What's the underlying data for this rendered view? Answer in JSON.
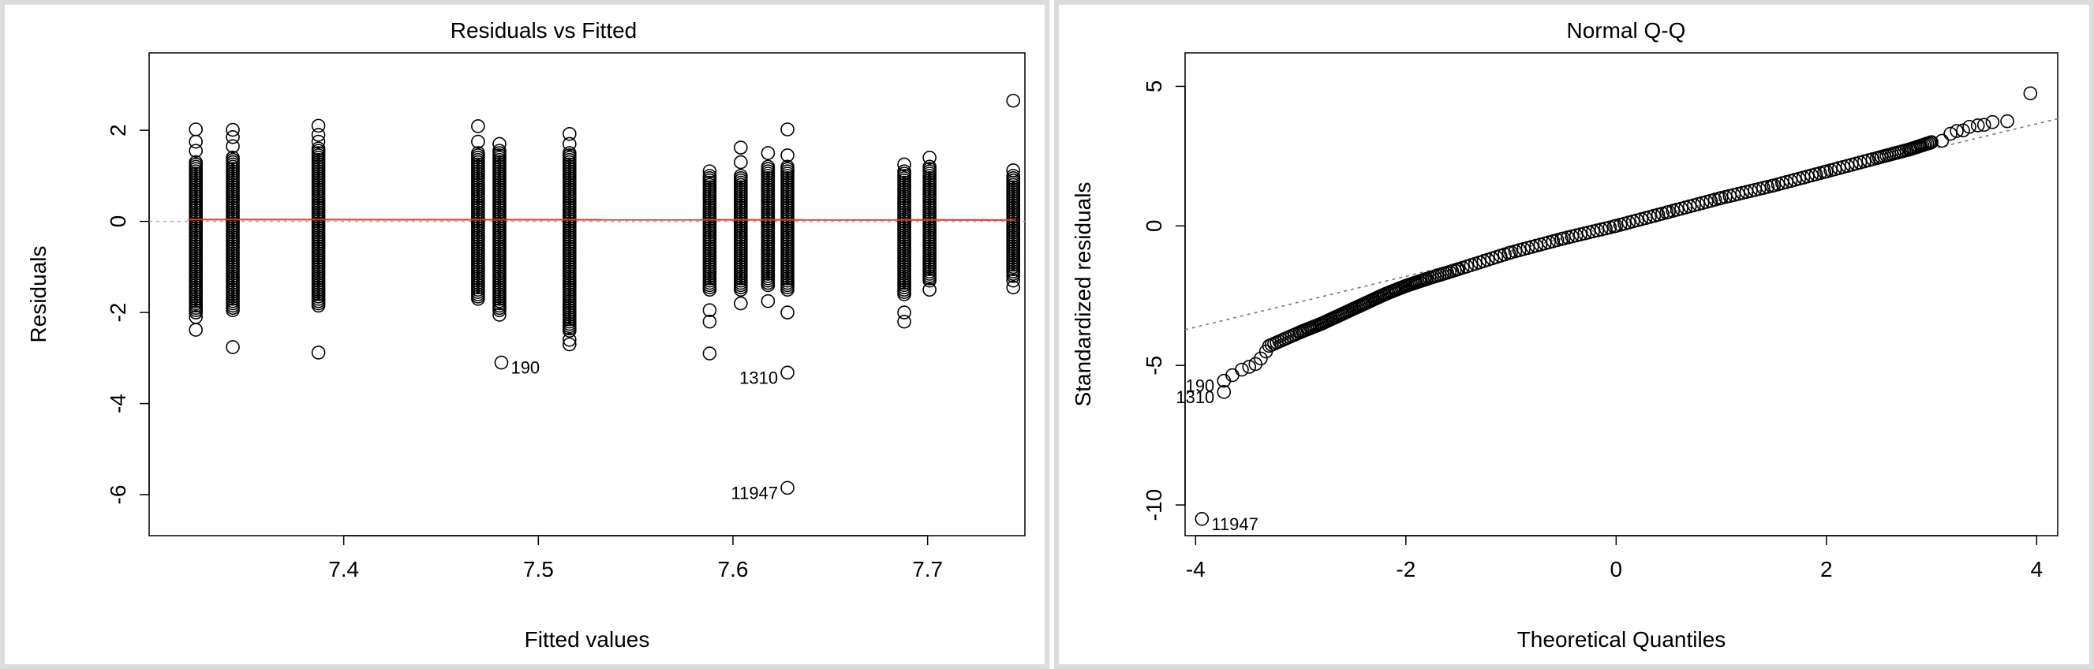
{
  "chart_data": [
    {
      "type": "scatter",
      "title": "Residuals vs Fitted",
      "xlabel": "Fitted values",
      "ylabel": "Residuals",
      "xlim": [
        7.3,
        7.75
      ],
      "ylim": [
        -6.9,
        3.7
      ],
      "xticks": [
        7.4,
        7.5,
        7.6,
        7.7
      ],
      "yticks": [
        -6,
        -4,
        -2,
        0,
        2
      ],
      "xtick_labels": [
        "7.4",
        "7.5",
        "7.6",
        "7.7"
      ],
      "ytick_labels": [
        "-6",
        "-4",
        "-2",
        "0",
        "2"
      ],
      "reference_line": {
        "y": 0,
        "style": "dotted",
        "color": "#aaaaaa"
      },
      "smooth_line": {
        "color": "#e0382e",
        "x": [
          7.32,
          7.745
        ],
        "y": [
          0.04,
          0.03
        ]
      },
      "columns": [
        {
          "x": 7.324,
          "min": -2.0,
          "max": 1.3,
          "extra": [
            2.02,
            1.75,
            1.55,
            -2.1,
            -2.38
          ]
        },
        {
          "x": 7.343,
          "min": -1.95,
          "max": 1.4,
          "extra": [
            2.01,
            1.85,
            1.65,
            -2.76
          ]
        },
        {
          "x": 7.387,
          "min": -1.85,
          "max": 1.6,
          "extra": [
            2.1,
            1.9,
            1.75,
            -2.88
          ]
        },
        {
          "x": 7.469,
          "min": -1.7,
          "max": 1.5,
          "extra": [
            2.09,
            1.75
          ]
        },
        {
          "x": 7.48,
          "min": -1.95,
          "max": 1.55,
          "extra": [
            1.7,
            -2.05
          ]
        },
        {
          "x": 7.516,
          "min": -2.4,
          "max": 1.5,
          "extra": [
            1.92,
            1.7,
            -2.6,
            -2.7
          ]
        },
        {
          "x": 7.588,
          "min": -1.5,
          "max": 1.0,
          "extra": [
            1.1,
            -1.95,
            -2.2,
            -2.9
          ]
        },
        {
          "x": 7.604,
          "min": -1.5,
          "max": 1.0,
          "extra": [
            1.62,
            1.3,
            -1.8
          ]
        },
        {
          "x": 7.618,
          "min": -1.4,
          "max": 1.2,
          "extra": [
            1.5,
            -1.75
          ]
        },
        {
          "x": 7.628,
          "min": -1.5,
          "max": 1.2,
          "extra": [
            2.02,
            1.45,
            -2.0
          ]
        },
        {
          "x": 7.688,
          "min": -1.6,
          "max": 1.1,
          "extra": [
            1.25,
            -2.0,
            -2.2
          ]
        },
        {
          "x": 7.701,
          "min": -1.3,
          "max": 1.2,
          "extra": [
            1.4,
            -1.5
          ]
        },
        {
          "x": 7.744,
          "min": -1.2,
          "max": 1.0,
          "extra": [
            1.12,
            -1.3,
            -1.45
          ]
        }
      ],
      "points": [
        {
          "x": 7.744,
          "y": 2.65
        },
        {
          "x": 7.481,
          "y": -3.1
        },
        {
          "x": 7.628,
          "y": -3.32
        },
        {
          "x": 7.628,
          "y": -5.85
        }
      ],
      "annotations": [
        {
          "text": "190",
          "x": 7.481,
          "y": -3.1,
          "side": "right"
        },
        {
          "text": "1310",
          "x": 7.628,
          "y": -3.32,
          "side": "left"
        },
        {
          "text": "11947",
          "x": 7.628,
          "y": -5.85,
          "side": "left"
        }
      ]
    },
    {
      "type": "scatter",
      "title": "Normal Q-Q",
      "xlabel": "Theoretical Quantiles",
      "ylabel": "Standardized residuals",
      "xlim": [
        -4.1,
        4.2
      ],
      "ylim": [
        -11.1,
        6.2
      ],
      "xticks": [
        -4,
        -2,
        0,
        2,
        4
      ],
      "yticks": [
        -10,
        -5,
        0,
        5
      ],
      "xtick_labels": [
        "-4",
        "-2",
        "0",
        "2",
        "4"
      ],
      "ytick_labels": [
        "-10",
        "-5",
        "0",
        "5"
      ],
      "reference_line": {
        "x": [
          -4.1,
          4.2
        ],
        "y": [
          -3.72,
          3.84
        ],
        "style": "dotted",
        "color": "#777777"
      },
      "curve": {
        "x": [
          -3.3,
          -3.0,
          -2.8,
          -2.6,
          -2.4,
          -2.2,
          -2.0,
          -1.8,
          -1.5,
          -1.0,
          -0.5,
          0.0,
          0.5,
          1.0,
          1.5,
          2.0,
          2.5,
          2.8,
          3.0
        ],
        "y": [
          -4.3,
          -3.8,
          -3.5,
          -3.15,
          -2.8,
          -2.45,
          -2.15,
          -1.9,
          -1.55,
          -0.95,
          -0.45,
          0.0,
          0.5,
          1.0,
          1.45,
          1.95,
          2.45,
          2.75,
          3.0
        ]
      },
      "points": [
        {
          "x": 3.1,
          "y": 3.05
        },
        {
          "x": 3.18,
          "y": 3.3
        },
        {
          "x": 3.24,
          "y": 3.4
        },
        {
          "x": 3.3,
          "y": 3.42
        },
        {
          "x": 3.36,
          "y": 3.55
        },
        {
          "x": 3.44,
          "y": 3.6
        },
        {
          "x": 3.5,
          "y": 3.62
        },
        {
          "x": 3.58,
          "y": 3.72
        },
        {
          "x": 3.72,
          "y": 3.75
        },
        {
          "x": 3.94,
          "y": 4.75
        },
        {
          "x": -3.33,
          "y": -4.5
        },
        {
          "x": -3.38,
          "y": -4.75
        },
        {
          "x": -3.43,
          "y": -4.95
        },
        {
          "x": -3.49,
          "y": -5.05
        },
        {
          "x": -3.56,
          "y": -5.15
        },
        {
          "x": -3.65,
          "y": -5.35
        },
        {
          "x": -3.73,
          "y": -5.55
        },
        {
          "x": -3.73,
          "y": -5.95
        },
        {
          "x": -3.94,
          "y": -10.5
        }
      ],
      "annotations": [
        {
          "text": "190",
          "x": -3.73,
          "y": -5.55,
          "side": "left"
        },
        {
          "text": "1310",
          "x": -3.73,
          "y": -5.95,
          "side": "left"
        },
        {
          "text": "11947",
          "x": -3.94,
          "y": -10.5,
          "side": "right"
        }
      ]
    }
  ]
}
